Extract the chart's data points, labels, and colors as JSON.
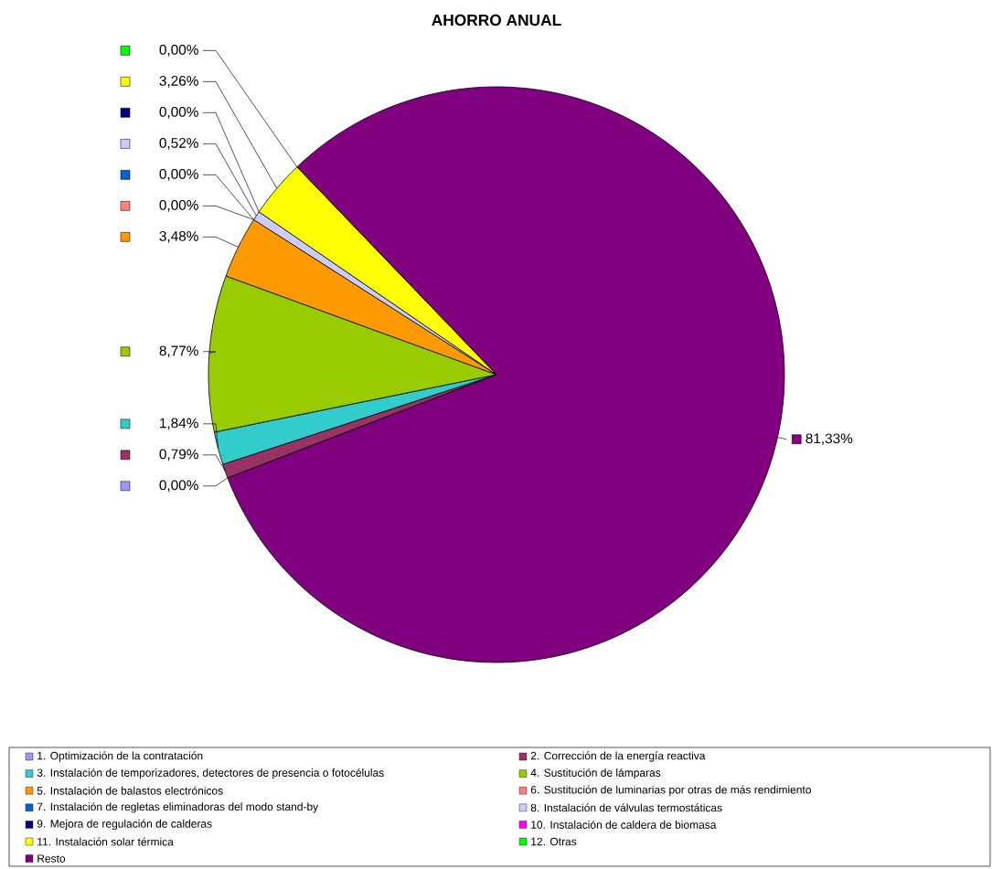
{
  "chart_data": {
    "type": "pie",
    "title": "AHORRO ANUAL",
    "categories": [
      "1. Optimización de la contratación",
      "2. Corrección de la energía reactiva",
      "3. Instalación de temporizadores, detectores de presencia o fotocélulas",
      "4. Sustitución de lámparas",
      "5. Instalación de balastos electrónicos",
      "6. Sustitución de luminarias por otras de más rendimiento",
      "7. Instalación de regletas eliminadoras del modo stand-by",
      "8. Instalación de válvulas termostáticas",
      "9. Mejora de regulación de calderas",
      "10. Instalación de caldera de biomasa",
      "11. Instalación solar térmica",
      "12. Otras",
      "Resto"
    ],
    "values": [
      0,
      0.79,
      1.84,
      8.77,
      3.48,
      0,
      0,
      0.52,
      0,
      0,
      3.26,
      0,
      81.33
    ],
    "value_labels": [
      "0,00%",
      "0,79%",
      "1,84%",
      "8,77%",
      "3,48%",
      "0,00%",
      "0,00%",
      "0,52%",
      "0,00%",
      null,
      "3,26%",
      "0,00%",
      "81,33%"
    ],
    "colors": [
      "#9999ff",
      "#993366",
      "#33cccc",
      "#99cc00",
      "#ff9900",
      "#ff8080",
      "#0066cc",
      "#ccccff",
      "#000080",
      "#ff00ff",
      "#ffff00",
      "#00ff00",
      "#800080"
    ],
    "legend": "bottom"
  }
}
